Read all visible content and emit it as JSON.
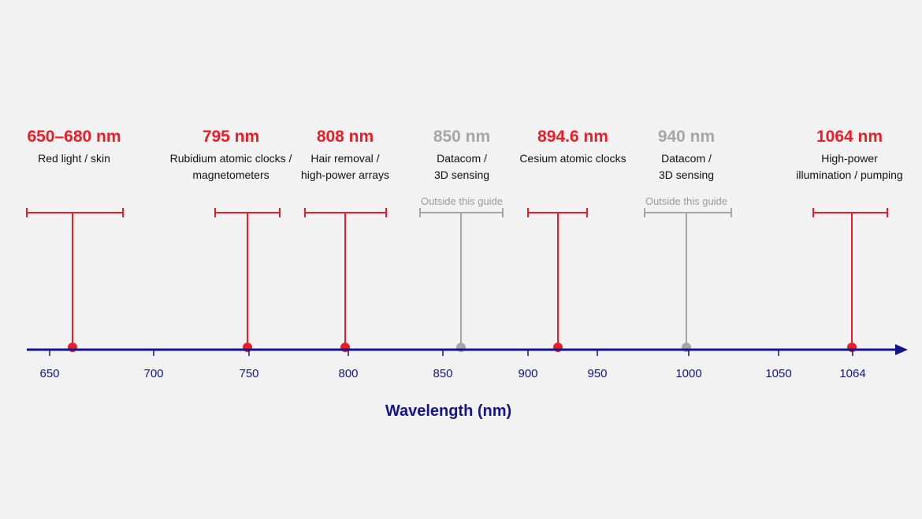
{
  "colors": {
    "active": "#ee1c25",
    "inactive": "#a6a6a6",
    "axis": "#14148c",
    "text": "#111111",
    "background": "#f2f2f2"
  },
  "axis": {
    "title": "Wavelength (nm)",
    "ticks": [
      "650",
      "700",
      "750",
      "800",
      "850",
      "900",
      "950",
      "1000",
      "1050",
      "1064"
    ]
  },
  "markers": [
    {
      "id": "650-680",
      "wavelength_label": "650–680 nm",
      "application_lines": [
        "Red light / skin"
      ],
      "note": "",
      "status": "active"
    },
    {
      "id": "795",
      "wavelength_label": "795 nm",
      "application_lines": [
        "Rubidium atomic clocks /",
        "magnetometers"
      ],
      "note": "",
      "status": "active"
    },
    {
      "id": "808",
      "wavelength_label": "808 nm",
      "application_lines": [
        "Hair removal /",
        "high-power arrays"
      ],
      "note": "",
      "status": "active"
    },
    {
      "id": "850",
      "wavelength_label": "850 nm",
      "application_lines": [
        "Datacom /",
        "3D sensing"
      ],
      "note": "Outside this guide",
      "status": "inactive"
    },
    {
      "id": "894-6",
      "wavelength_label": "894.6 nm",
      "application_lines": [
        "Cesium atomic clocks"
      ],
      "note": "",
      "status": "active"
    },
    {
      "id": "940",
      "wavelength_label": "940 nm",
      "application_lines": [
        "Datacom /",
        "3D sensing"
      ],
      "note": "Outside this guide",
      "status": "inactive"
    },
    {
      "id": "1064",
      "wavelength_label": "1064 nm",
      "application_lines": [
        "High-power",
        "illumination / pumping"
      ],
      "note": "",
      "status": "active"
    }
  ]
}
